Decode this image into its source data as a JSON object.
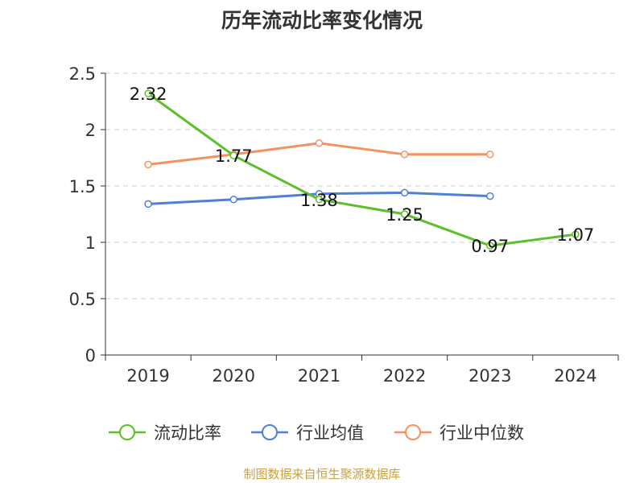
{
  "chart_data": {
    "type": "line",
    "title": "历年流动比率变化情况",
    "source": "制图数据来自恒生聚源数据库",
    "categories": [
      "2019",
      "2020",
      "2021",
      "2022",
      "2023",
      "2024"
    ],
    "ylim": [
      0,
      2.5
    ],
    "yticks": [
      "0",
      "0.5",
      "1",
      "1.5",
      "2",
      "2.5"
    ],
    "grid": true,
    "legend_position": "bottom",
    "series": [
      {
        "name": "流动比率",
        "color": "#5cbf2a",
        "values": [
          2.32,
          1.77,
          1.38,
          1.25,
          0.97,
          1.07
        ],
        "labels": [
          "2.32",
          "1.77",
          "1.38",
          "1.25",
          "0.97",
          "1.07"
        ]
      },
      {
        "name": "行业均值",
        "color": "#4f7fd6",
        "values": [
          1.34,
          1.38,
          1.43,
          1.44,
          1.41,
          null
        ]
      },
      {
        "name": "行业中位数",
        "color": "#f79060",
        "values": [
          1.69,
          1.78,
          1.88,
          1.78,
          1.78,
          null
        ]
      }
    ]
  }
}
